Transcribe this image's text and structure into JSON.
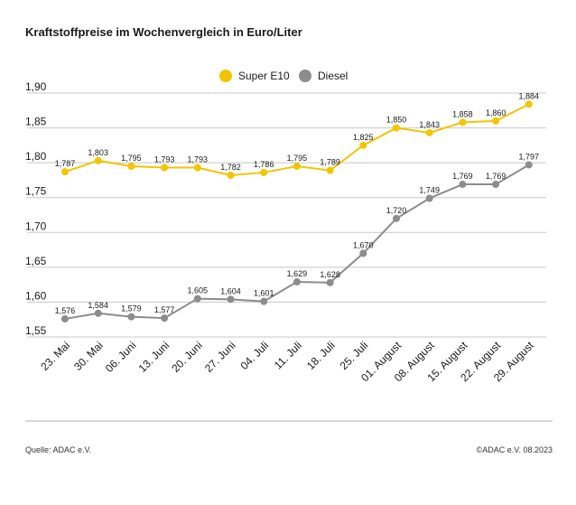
{
  "header": {
    "title": "Kraftstoffpreise im Wochenvergleich in Euro/Liter"
  },
  "footer": {
    "source": "Quelle: ADAC e.V.",
    "copyright": "©ADAC e.V. 08.2023"
  },
  "chart_data": {
    "type": "line",
    "title": "Kraftstoffpreise im Wochenvergleich in Euro/Liter",
    "categories": [
      "23. Mai",
      "30. Mai",
      "06. Juni",
      "13. Juni",
      "20. Juni",
      "27. Juni",
      "04. Juli",
      "11. Juli",
      "18. Juli",
      "25. Juli",
      "01. August",
      "08. August",
      "15. August",
      "22. August",
      "29. August"
    ],
    "series": [
      {
        "name": "Super E10",
        "color": "#f2c500",
        "values": [
          1.787,
          1.803,
          1.795,
          1.793,
          1.793,
          1.782,
          1.786,
          1.795,
          1.789,
          1.825,
          1.85,
          1.843,
          1.858,
          1.86,
          1.884
        ],
        "labels": [
          "1,787",
          "1,803",
          "1,795",
          "1,793",
          "1,793",
          "1,782",
          "1,786",
          "1,795",
          "1,789",
          "1,825",
          "1,850",
          "1,843",
          "1,858",
          "1,860",
          "1,884"
        ]
      },
      {
        "name": "Diesel",
        "color": "#8c8c8c",
        "values": [
          1.576,
          1.584,
          1.579,
          1.577,
          1.605,
          1.604,
          1.601,
          1.629,
          1.628,
          1.67,
          1.72,
          1.749,
          1.769,
          1.769,
          1.797
        ],
        "labels": [
          "1,576",
          "1,584",
          "1,579",
          "1,577",
          "1,605",
          "1,604",
          "1,601",
          "1,629",
          "1,628",
          "1,670",
          "1,720",
          "1,749",
          "1,769",
          "1,769",
          "1,797"
        ]
      }
    ],
    "yticks": [
      "1,55",
      "1,60",
      "1,65",
      "1,70",
      "1,75",
      "1,80",
      "1,85",
      "1,90"
    ],
    "ytick_values": [
      1.55,
      1.6,
      1.65,
      1.7,
      1.75,
      1.8,
      1.85,
      1.9
    ],
    "ylim": [
      1.55,
      1.9
    ],
    "grid": true,
    "legend_position": "top-center",
    "gridline_color": "#c8c8c8"
  }
}
